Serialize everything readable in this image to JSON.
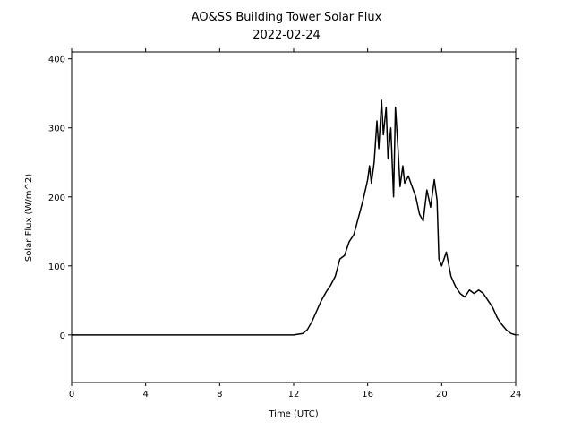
{
  "chart_data": {
    "type": "line",
    "title": "AO&SS Building Tower Solar Flux",
    "subtitle": "2022-02-24",
    "xlabel": "Time (UTC)",
    "ylabel": "Solar Flux (W/m^2)",
    "x": [
      0,
      12,
      12.5,
      12.75,
      13,
      13.25,
      13.5,
      13.75,
      14,
      14.25,
      14.5,
      14.75,
      15,
      15.25,
      15.5,
      15.75,
      16,
      16.1,
      16.2,
      16.35,
      16.5,
      16.6,
      16.75,
      16.85,
      17,
      17.1,
      17.25,
      17.4,
      17.5,
      17.65,
      17.75,
      17.9,
      18,
      18.2,
      18.4,
      18.6,
      18.8,
      19,
      19.2,
      19.4,
      19.6,
      19.75,
      19.85,
      20,
      20.25,
      20.5,
      20.75,
      21,
      21.25,
      21.5,
      21.75,
      22,
      22.25,
      22.5,
      22.75,
      23,
      23.25,
      23.5,
      23.75,
      24
    ],
    "series": [
      {
        "name": "Solar Flux",
        "color": "#000000",
        "values": [
          0,
          0,
          2,
          8,
          20,
          35,
          50,
          62,
          72,
          85,
          110,
          115,
          135,
          145,
          170,
          195,
          225,
          245,
          220,
          250,
          310,
          270,
          340,
          290,
          330,
          255,
          300,
          200,
          330,
          265,
          215,
          245,
          220,
          230,
          215,
          200,
          175,
          165,
          210,
          185,
          225,
          195,
          110,
          100,
          120,
          85,
          70,
          60,
          55,
          65,
          60,
          65,
          60,
          50,
          40,
          25,
          15,
          7,
          2,
          0
        ]
      }
    ],
    "xlim": [
      0,
      24
    ],
    "xticks": [
      0,
      4,
      8,
      12,
      16,
      20,
      24
    ],
    "ylim": [
      -69,
      410
    ],
    "yticks": [
      0,
      100,
      200,
      300,
      400
    ]
  }
}
